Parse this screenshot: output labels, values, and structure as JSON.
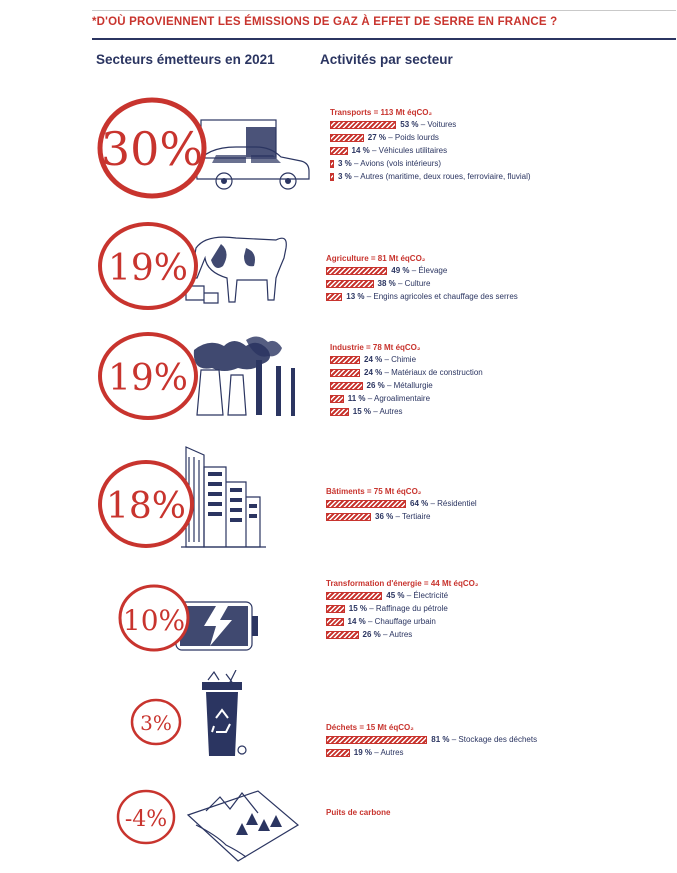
{
  "title": "*D'OÙ PROVIENNENT LES ÉMISSIONS DE GAZ À EFFET DE SERRE EN FRANCE ?",
  "left_heading": "Secteurs émetteurs en 2021",
  "right_heading": "Activités par secteur",
  "colors": {
    "accent": "#c8342e",
    "ink": "#2b3561"
  },
  "sectors": [
    {
      "share": "30%",
      "icon": "truck-car-icon",
      "title": "Transports = 113 Mt éqCO₂",
      "activities": [
        {
          "value": "53 %",
          "label": " – Voitures"
        },
        {
          "value": "27 %",
          "label": " – Poids lourds"
        },
        {
          "value": "14 %",
          "label": " – Véhicules utilitaires"
        },
        {
          "value": "3 %",
          "label": " – Avions (vols intérieurs)"
        },
        {
          "value": "3 %",
          "label": " – Autres (maritime, deux roues, ferroviaire, fluvial)"
        }
      ]
    },
    {
      "share": "19%",
      "icon": "cow-icon",
      "title": "Agriculture = 81 Mt éqCO₂",
      "activities": [
        {
          "value": "49 %",
          "label": " – Élevage"
        },
        {
          "value": "38 %",
          "label": " – Culture"
        },
        {
          "value": "13 %",
          "label": " – Engins agricoles et chauffage des serres"
        }
      ]
    },
    {
      "share": "19%",
      "icon": "factory-chimneys-icon",
      "title": "Industrie = 78 Mt éqCO₂",
      "activities": [
        {
          "value": "24 %",
          "label": " – Chimie"
        },
        {
          "value": "24 %",
          "label": " – Matériaux de construction"
        },
        {
          "value": "26 %",
          "label": " – Métallurgie"
        },
        {
          "value": "11 %",
          "label": " – Agroalimentaire"
        },
        {
          "value": "15 %",
          "label": " – Autres"
        }
      ]
    },
    {
      "share": "18%",
      "icon": "buildings-icon",
      "title": "Bâtiments = 75 Mt éqCO₂",
      "activities": [
        {
          "value": "64 %",
          "label": " – Résidentiel"
        },
        {
          "value": "36 %",
          "label": " – Tertiaire"
        }
      ]
    },
    {
      "share": "10%",
      "icon": "battery-lightning-icon",
      "title": "Transformation d'énergie = 44 Mt éqCO₂",
      "activities": [
        {
          "value": "45 %",
          "label": " – Électricité"
        },
        {
          "value": "15 %",
          "label": " – Raffinage du pétrole"
        },
        {
          "value": "14 %",
          "label": " – Chauffage urbain"
        },
        {
          "value": "26 %",
          "label": " – Autres"
        }
      ]
    },
    {
      "share": "3%",
      "icon": "recycling-bin-icon",
      "title": "Déchets = 15 Mt éqCO₂",
      "activities": [
        {
          "value": "81 %",
          "label": " – Stockage des déchets"
        },
        {
          "value": "19 %",
          "label": " – Autres"
        }
      ]
    },
    {
      "share": "-4%",
      "icon": "forest-landscape-icon",
      "title": "Puits de carbone",
      "activities": []
    }
  ],
  "chart_data": {
    "type": "bar",
    "title": "*D'OÙ PROVIENNENT LES ÉMISSIONS DE GAZ À EFFET DE SERRE EN FRANCE ?",
    "sector_shares": {
      "categories": [
        "Transports",
        "Agriculture",
        "Industrie",
        "Bâtiments",
        "Transformation d'énergie",
        "Déchets",
        "Puits de carbone"
      ],
      "values": [
        30,
        19,
        19,
        18,
        10,
        3,
        -4
      ],
      "unit": "%"
    },
    "sector_emissions": {
      "categories": [
        "Transports",
        "Agriculture",
        "Industrie",
        "Bâtiments",
        "Transformation d'énergie",
        "Déchets"
      ],
      "values": [
        113,
        81,
        78,
        75,
        44,
        15
      ],
      "unit": "Mt éqCO₂"
    },
    "activities": [
      {
        "sector": "Transports",
        "categories": [
          "Voitures",
          "Poids lourds",
          "Véhicules utilitaires",
          "Avions (vols intérieurs)",
          "Autres (maritime, deux roues, ferroviaire, fluvial)"
        ],
        "values": [
          53,
          27,
          14,
          3,
          3
        ]
      },
      {
        "sector": "Agriculture",
        "categories": [
          "Élevage",
          "Culture",
          "Engins agricoles et chauffage des serres"
        ],
        "values": [
          49,
          38,
          13
        ]
      },
      {
        "sector": "Industrie",
        "categories": [
          "Chimie",
          "Matériaux de construction",
          "Métallurgie",
          "Agroalimentaire",
          "Autres"
        ],
        "values": [
          24,
          24,
          26,
          11,
          15
        ]
      },
      {
        "sector": "Bâtiments",
        "categories": [
          "Résidentiel",
          "Tertiaire"
        ],
        "values": [
          64,
          36
        ]
      },
      {
        "sector": "Transformation d'énergie",
        "categories": [
          "Électricité",
          "Raffinage du pétrole",
          "Chauffage urbain",
          "Autres"
        ],
        "values": [
          45,
          15,
          14,
          26
        ]
      },
      {
        "sector": "Déchets",
        "categories": [
          "Stockage des déchets",
          "Autres"
        ],
        "values": [
          81,
          19
        ]
      }
    ]
  }
}
